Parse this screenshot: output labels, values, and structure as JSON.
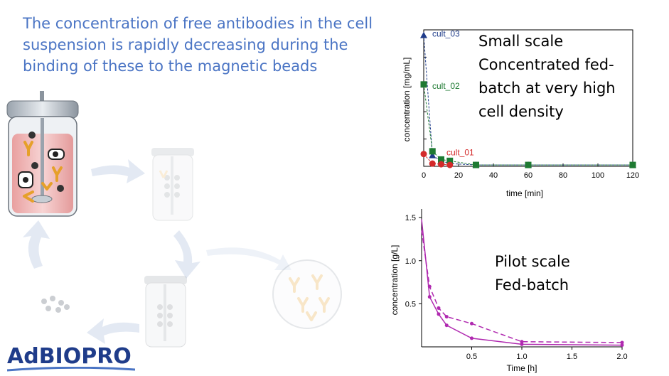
{
  "headline": {
    "lines": [
      "The concentration of free antibodies in the cell",
      "suspension is rapidly decreasing during the",
      "binding of these to the magnetic beads"
    ]
  },
  "callouts": {
    "small_scale": [
      "Small scale",
      "Concentrated fed-",
      "batch at very high",
      "cell density"
    ],
    "pilot_scale": [
      "Pilot scale",
      "Fed-batch"
    ]
  },
  "logo": "AdBIOPRO",
  "colors": {
    "headline": "#4a74c4",
    "cult_01": "#d42a2a",
    "cult_02": "#1e7a32",
    "cult_03": "#1f3c8a",
    "pilot": "#b02ab0",
    "arrow": "#e3e9f3"
  },
  "chart_data": [
    {
      "type": "line",
      "xlabel": "time [min]",
      "ylabel": "concentration [mg/mL]",
      "xlim": [
        0,
        120
      ],
      "xticks": [
        0,
        20,
        40,
        60,
        80,
        100,
        120
      ],
      "ylim": [
        0,
        1
      ],
      "y_tick_labels_shown": false,
      "grid": false,
      "series": [
        {
          "name": "cult_03",
          "marker": "triangle",
          "color": "#1f3c8a",
          "x": [
            0,
            5,
            10,
            15,
            30,
            60,
            120
          ],
          "y": [
            0.96,
            0.08,
            0.04,
            0.02,
            0.01,
            0.01,
            0.01
          ]
        },
        {
          "name": "cult_02",
          "marker": "square",
          "color": "#1e7a32",
          "x": [
            0,
            5,
            10,
            15,
            30,
            60,
            120
          ],
          "y": [
            0.6,
            0.11,
            0.05,
            0.04,
            0.01,
            0.01,
            0.01
          ]
        },
        {
          "name": "cult_01",
          "marker": "circle",
          "color": "#d42a2a",
          "x": [
            0,
            5,
            10,
            15
          ],
          "y": [
            0.09,
            0.02,
            0.015,
            0.01
          ]
        }
      ]
    },
    {
      "type": "line",
      "xlabel": "Time [h]",
      "ylabel": "concentration  [g/L]",
      "xlim": [
        0,
        2.0
      ],
      "xticks": [
        0.5,
        1.0,
        1.5,
        2.0
      ],
      "ylim": [
        0,
        1.6
      ],
      "yticks": [
        0.5,
        1.0,
        1.5
      ],
      "grid": false,
      "series": [
        {
          "style": "solid",
          "color": "#b02ab0",
          "x": [
            0,
            0.08,
            0.17,
            0.25,
            0.5,
            1.0,
            2.0
          ],
          "y": [
            1.48,
            0.58,
            0.38,
            0.25,
            0.1,
            0.03,
            0.02
          ]
        },
        {
          "style": "dashed",
          "color": "#b02ab0",
          "x": [
            0,
            0.08,
            0.17,
            0.25,
            0.5,
            1.0,
            2.0
          ],
          "y": [
            1.35,
            0.7,
            0.45,
            0.35,
            0.27,
            0.06,
            0.05
          ]
        }
      ]
    }
  ]
}
